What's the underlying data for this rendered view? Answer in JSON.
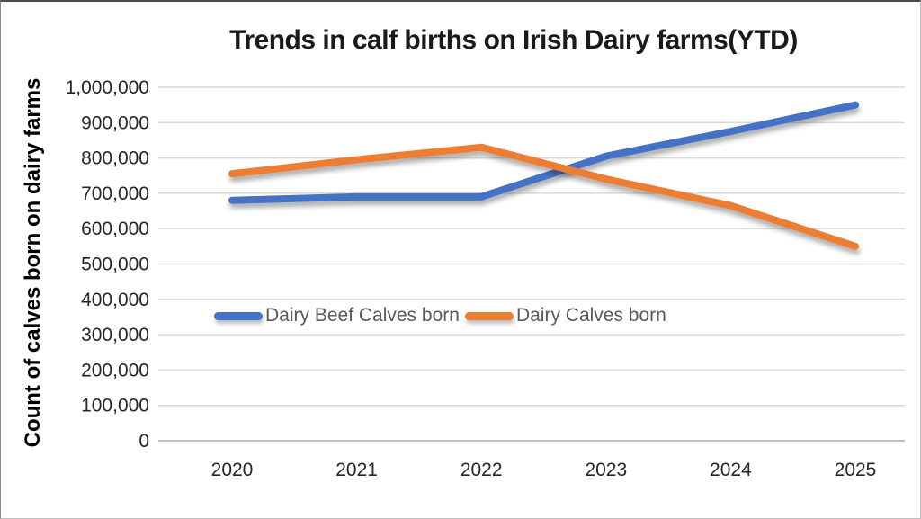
{
  "chart_data": {
    "type": "line",
    "title": "Trends in calf births on Irish Dairy farms(YTD)",
    "ylabel": "Count of calves born on dairy farms",
    "xlabel": "",
    "categories": [
      "2020",
      "2021",
      "2022",
      "2023",
      "2024",
      "2025"
    ],
    "series": [
      {
        "name": "Dairy Beef Calves born",
        "color": "#4472C4",
        "values": [
          680000,
          690000,
          690000,
          805000,
          875000,
          950000
        ]
      },
      {
        "name": "Dairy Calves born",
        "color": "#ED7D31",
        "values": [
          755000,
          795000,
          830000,
          740000,
          665000,
          550000
        ]
      }
    ],
    "ylim": [
      0,
      1000000
    ],
    "ytick_step": 100000,
    "grid": true,
    "legend_position": "inside-middle-left",
    "colors": {
      "gridline": "#D9D9D9",
      "axis_line": "#BFBFBF",
      "tick_label": "#262626",
      "legend_text": "#595959"
    }
  }
}
